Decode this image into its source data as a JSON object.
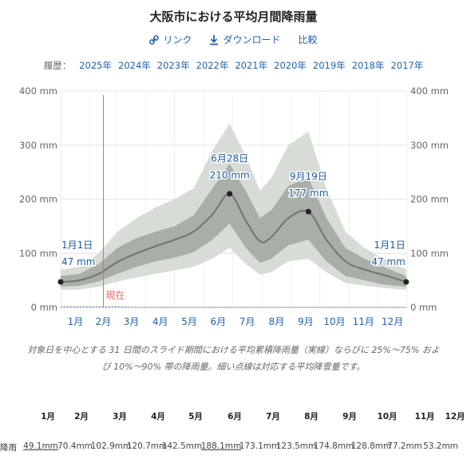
{
  "title": "大阪市における平均月間降雨量",
  "actions": [
    {
      "label": "リンク",
      "icon": "link-icon"
    },
    {
      "label": "ダウンロード",
      "icon": "download-icon"
    },
    {
      "label": "比較",
      "icon": ""
    }
  ],
  "history": {
    "label": "履歴：",
    "years": [
      "2025年",
      "2024年",
      "2023年",
      "2022年",
      "2021年",
      "2020年",
      "2019年",
      "2018年",
      "2017年"
    ]
  },
  "chart_data": {
    "type": "area",
    "x_ticks": [
      "1月",
      "2月",
      "3月",
      "4月",
      "5月",
      "6月",
      "7月",
      "8月",
      "9月",
      "10月",
      "11月",
      "12月"
    ],
    "y_ticks": [
      "0 mm",
      "100 mm",
      "200 mm",
      "300 mm",
      "400 mm"
    ],
    "ylim": [
      0,
      400
    ],
    "xlim": [
      0,
      365
    ],
    "now_label": "現在",
    "now_day": 45,
    "colors": {
      "median": "#6f746f",
      "inner": "#a9aea8",
      "outer": "#d8dcd6",
      "now": "#e06a6a",
      "snow": "#3a6fb0",
      "label": "#1f5aa0"
    },
    "series": {
      "day": [
        0,
        20,
        40,
        60,
        80,
        100,
        120,
        140,
        160,
        178,
        195,
        210,
        222,
        240,
        261,
        280,
        300,
        320,
        340,
        364
      ],
      "median": [
        47,
        50,
        62,
        84,
        100,
        113,
        125,
        140,
        172,
        210,
        160,
        122,
        130,
        165,
        177,
        125,
        85,
        70,
        60,
        47
      ],
      "p25": [
        38,
        40,
        48,
        62,
        75,
        85,
        92,
        102,
        125,
        155,
        110,
        82,
        90,
        115,
        125,
        85,
        58,
        50,
        42,
        38
      ],
      "p75": [
        58,
        62,
        80,
        110,
        128,
        140,
        150,
        170,
        220,
        265,
        215,
        165,
        180,
        225,
        240,
        165,
        110,
        90,
        75,
        58
      ],
      "p10": [
        32,
        33,
        38,
        48,
        55,
        62,
        68,
        75,
        90,
        110,
        80,
        60,
        65,
        85,
        90,
        65,
        45,
        40,
        36,
        32
      ],
      "p90": [
        70,
        75,
        100,
        140,
        165,
        185,
        200,
        220,
        290,
        340,
        280,
        215,
        240,
        300,
        325,
        220,
        140,
        110,
        90,
        70
      ],
      "snow": [
        1,
        1,
        1,
        1,
        0,
        0,
        0,
        0,
        0,
        0,
        0,
        0,
        0,
        0,
        0,
        0,
        0,
        0,
        0,
        0
      ]
    },
    "annotations": [
      {
        "day": 0,
        "value": 47,
        "date": "1月1日",
        "amount": "47 mm",
        "align": "left"
      },
      {
        "day": 178,
        "value": 210,
        "date": "6月28日",
        "amount": "210 mm",
        "align": "center"
      },
      {
        "day": 261,
        "value": 177,
        "date": "9月19日",
        "amount": "177 mm",
        "align": "center"
      },
      {
        "day": 364,
        "value": 47,
        "date": "1月1日",
        "amount": "47 mm",
        "align": "right"
      }
    ]
  },
  "caption": "対象日を中心とする 31 日間のスライド期間における平均累積降雨量（実線）ならびに 25%～75% および 10%～90% 帯の降雨量。細い点線は対応する平均降雪量です。",
  "table": {
    "months": [
      "1月",
      "2月",
      "3月",
      "4月",
      "5月",
      "6月",
      "7月",
      "8月",
      "9月",
      "10月",
      "11月",
      "12月"
    ],
    "row_label": "降雨",
    "values": [
      "49.1mm",
      "70.4mm",
      "102.9mm",
      "120.7mm",
      "142.5mm",
      "188.1mm",
      "173.1mm",
      "123.5mm",
      "174.8mm",
      "128.8mm",
      "77.2mm",
      "53.2mm"
    ]
  }
}
